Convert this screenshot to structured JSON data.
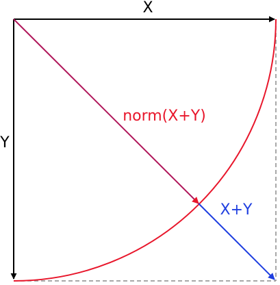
{
  "labels": {
    "x": "X",
    "y": "Y",
    "norm": "norm(X+Y)",
    "sum": "X+Y"
  },
  "colors": {
    "axis": "#000000",
    "norm": "#e8162b",
    "sum": "#1f3fe0",
    "dashed": "#8c8c8c"
  }
}
